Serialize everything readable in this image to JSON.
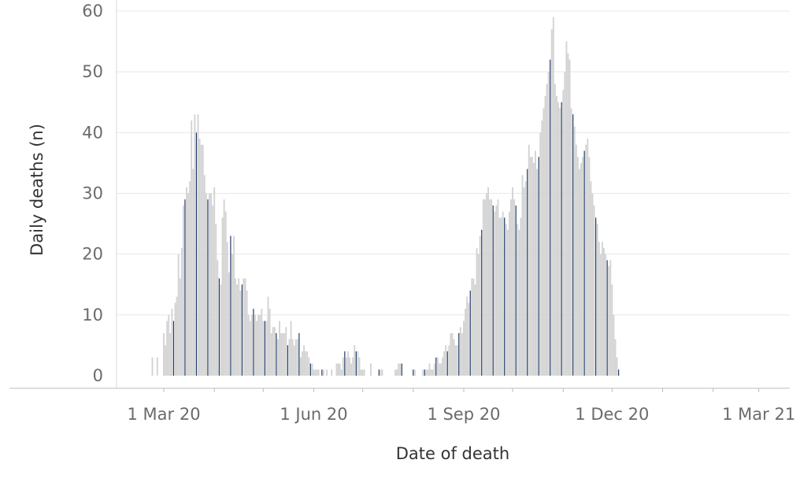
{
  "chart_data": {
    "type": "bar",
    "title": "",
    "xlabel": "Date of death",
    "ylabel": "Daily deaths (n)",
    "ylim": [
      0,
      60
    ],
    "y_ticks": [
      "0",
      "10",
      "20",
      "30",
      "40",
      "50",
      "60"
    ],
    "x_ticks": [
      {
        "date": "2020-03-01",
        "label": "1 Mar 20"
      },
      {
        "date": "2020-06-01",
        "label": "1 Jun 20"
      },
      {
        "date": "2020-09-01",
        "label": "1 Sep 20"
      },
      {
        "date": "2020-12-01",
        "label": "1 Dec 20"
      },
      {
        "date": "2021-03-01",
        "label": "1 Mar 21"
      }
    ],
    "x_range": [
      "2020-02-01",
      "2021-03-20"
    ],
    "grid": true,
    "legend": "none",
    "colors": {
      "daily": "#d3d3d3",
      "weekly": "#1f3a68",
      "grid": "#e8e8e8",
      "axis": "#bdbdbd"
    },
    "series": [
      {
        "start_date": "2020-02-18",
        "values": [
          0,
          0,
          0,
          0,
          0,
          3,
          0,
          0,
          3,
          0,
          0,
          0,
          7,
          5,
          9,
          10,
          7,
          11,
          9,
          12,
          13,
          20,
          16,
          21,
          28,
          29,
          31,
          30,
          32,
          42,
          34,
          43,
          40,
          43,
          39,
          38,
          38,
          33,
          30,
          29,
          30,
          30,
          28,
          31,
          25,
          19,
          16,
          15,
          26,
          29,
          27,
          22,
          17,
          23,
          20,
          23,
          16,
          15,
          16,
          14,
          15,
          16,
          16,
          14,
          10,
          9,
          10,
          11,
          10,
          9,
          10,
          10,
          11,
          9,
          9,
          9,
          13,
          11,
          7,
          8,
          8,
          7,
          6,
          9,
          7,
          7,
          7,
          8,
          5,
          6,
          9,
          6,
          5,
          6,
          6,
          7,
          3,
          4,
          5,
          4,
          4,
          3,
          2,
          2,
          1,
          1,
          1,
          1,
          0,
          1,
          1,
          0,
          1,
          0,
          0,
          1,
          0,
          0,
          2,
          2,
          2,
          1,
          3,
          4,
          3,
          4,
          3,
          2,
          3,
          5,
          4,
          4,
          3,
          1,
          1,
          1,
          0,
          0,
          0,
          2,
          0,
          0,
          0,
          0,
          1,
          1,
          1,
          0,
          0,
          0,
          0,
          0,
          0,
          0,
          1,
          1,
          2,
          2,
          2,
          0,
          0,
          0,
          0,
          0,
          0,
          1,
          1,
          0,
          0,
          0,
          0,
          1,
          1,
          1,
          1,
          2,
          1,
          1,
          2,
          3,
          3,
          2,
          2,
          3,
          4,
          5,
          4,
          5,
          7,
          7,
          6,
          5,
          5,
          7,
          8,
          7,
          9,
          11,
          13,
          12,
          14,
          16,
          16,
          15,
          21,
          20,
          23,
          24,
          29,
          29,
          30,
          31,
          29,
          29,
          28,
          27,
          28,
          29,
          26,
          26,
          27,
          26,
          25,
          24,
          27,
          29,
          31,
          29,
          28,
          25,
          24,
          26,
          33,
          31,
          32,
          34,
          38,
          36,
          36,
          35,
          37,
          34,
          36,
          40,
          42,
          44,
          46,
          48,
          50,
          52,
          57,
          59,
          48,
          46,
          45,
          44,
          45,
          47,
          50,
          55,
          53,
          52,
          44,
          43,
          41,
          38,
          36,
          34,
          35,
          36,
          37,
          38,
          39,
          36,
          32,
          30,
          28,
          26,
          25,
          22,
          20,
          22,
          21,
          20,
          19,
          18,
          19,
          15,
          10,
          6,
          3,
          1
        ]
      }
    ],
    "highlight_every": 7,
    "highlight_offset": 4
  }
}
